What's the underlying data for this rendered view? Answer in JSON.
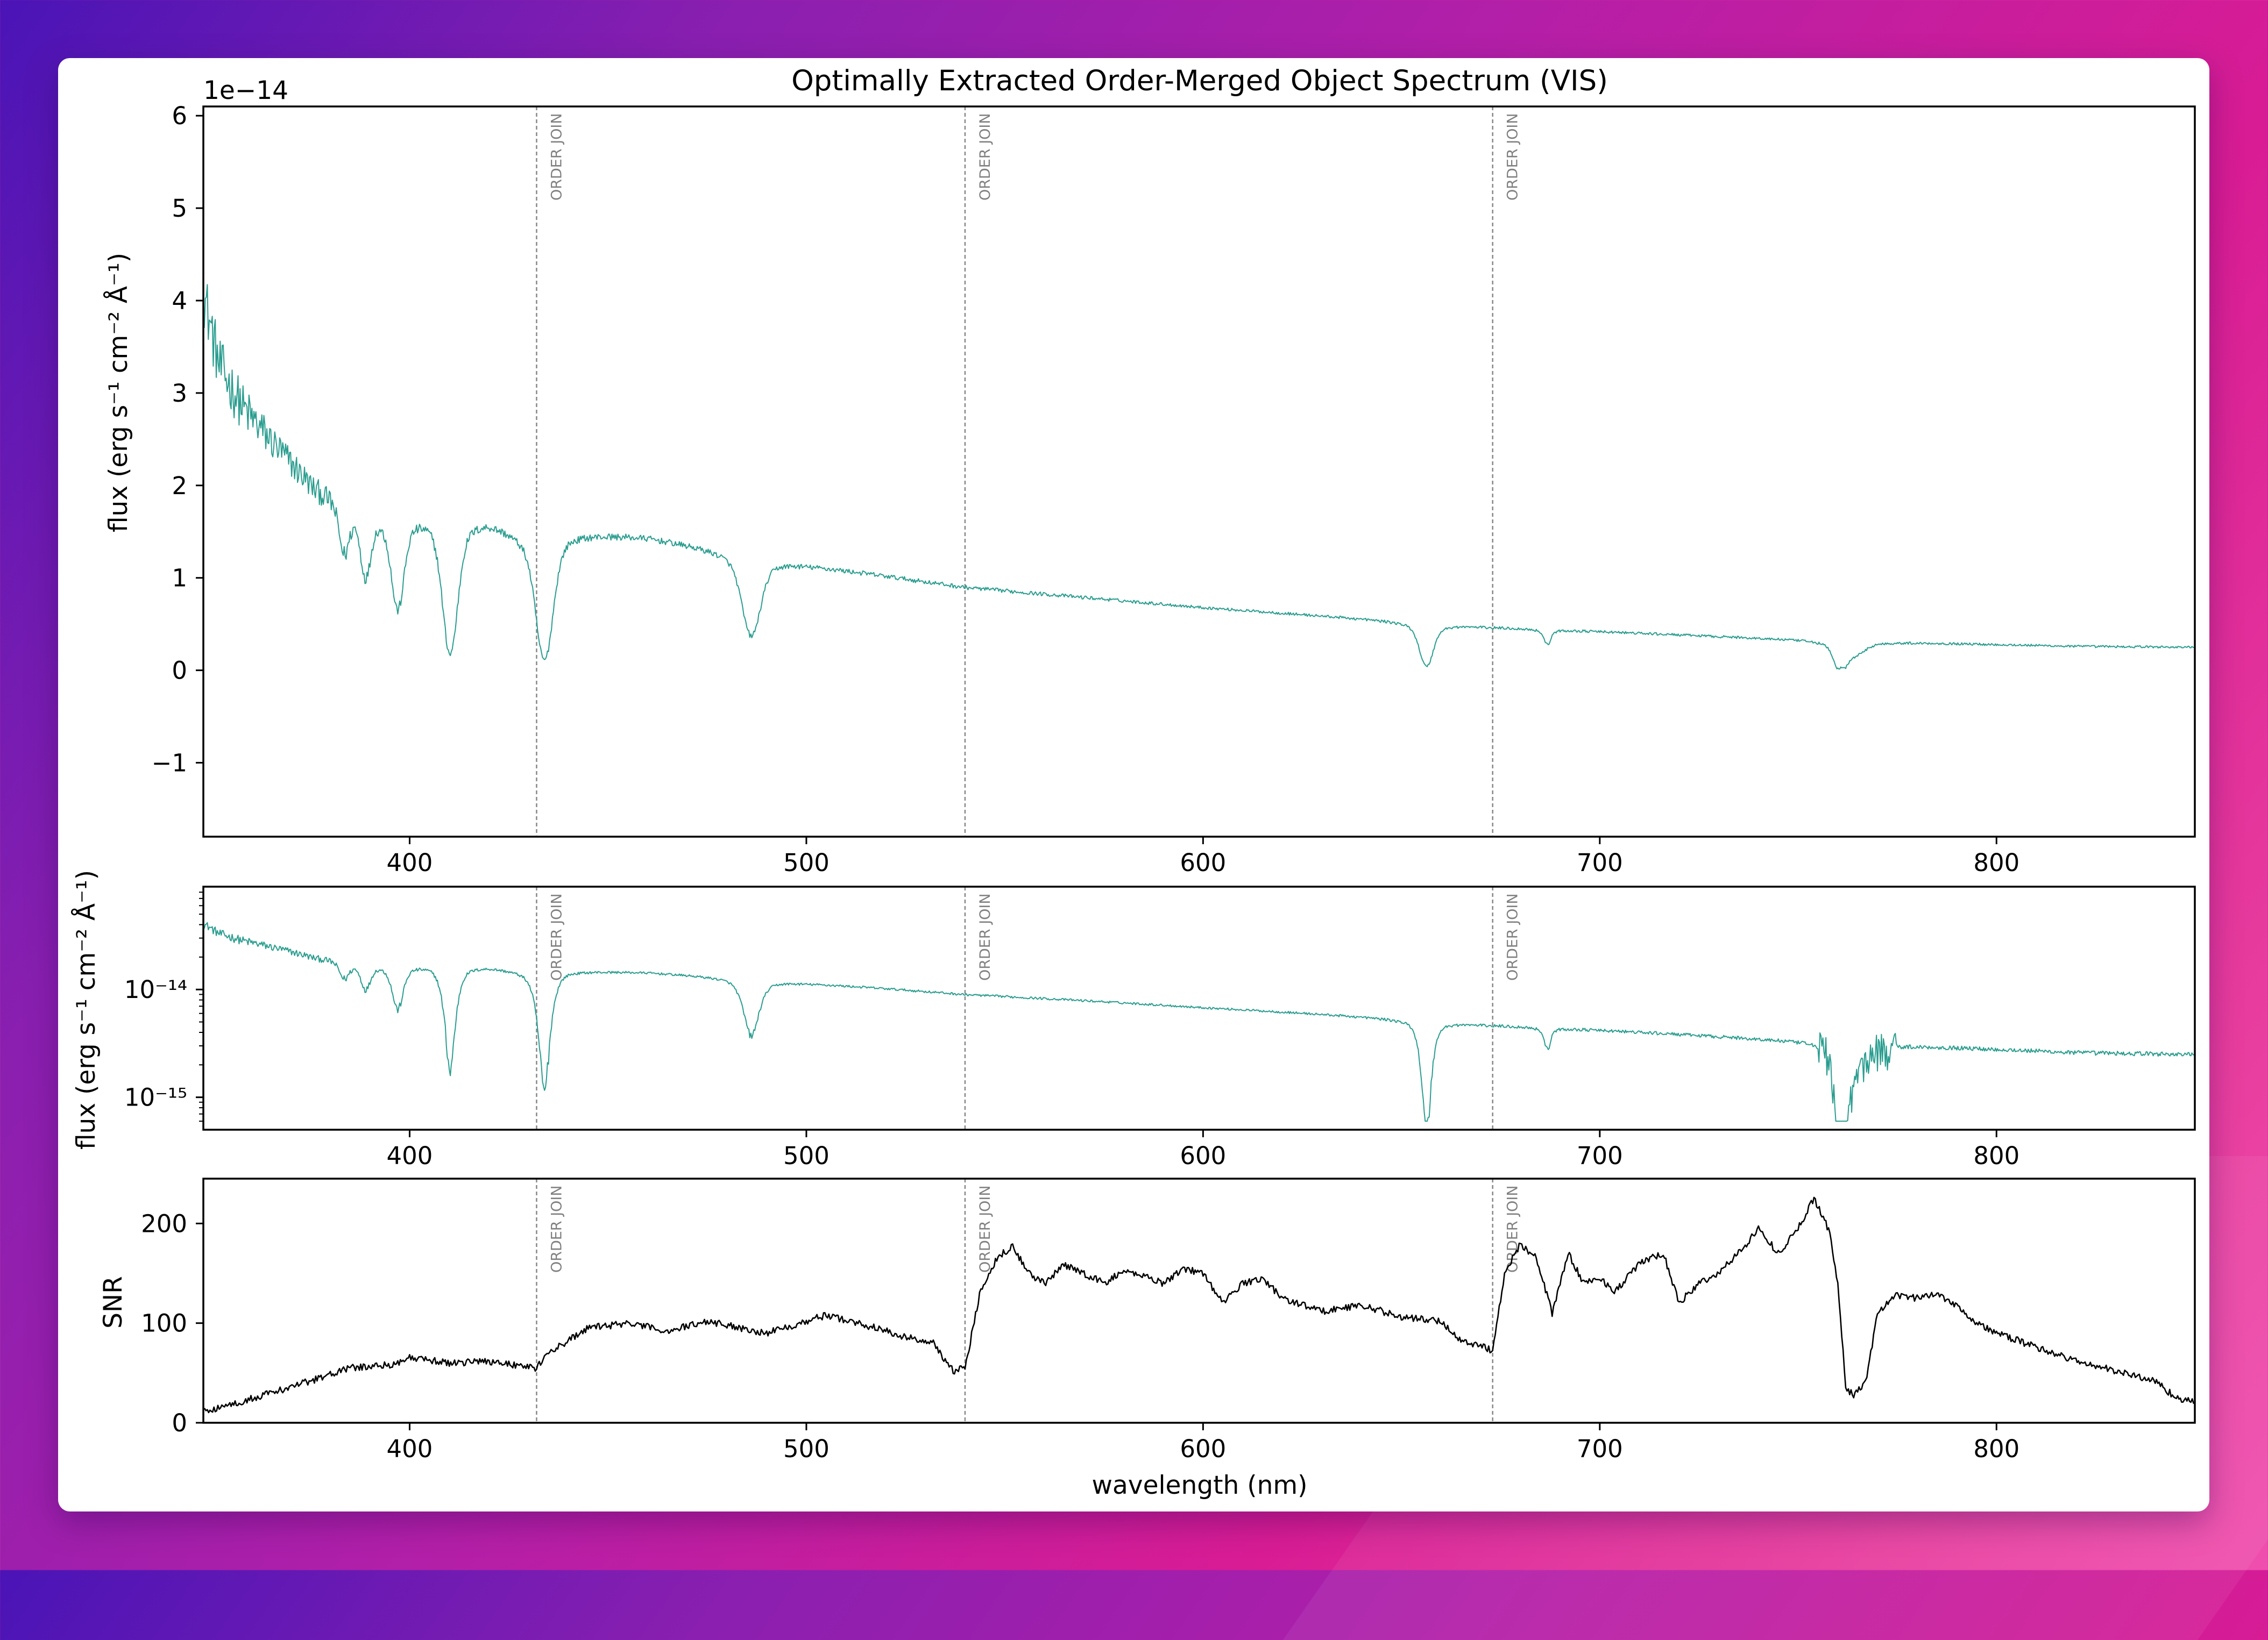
{
  "chart_data": [
    {
      "panel": "linear-flux",
      "type": "line",
      "title": "Optimally Extracted Order-Merged Object Spectrum (VIS)",
      "xlabel": "",
      "ylabel": "flux (erg s⁻¹ cm⁻² Å⁻¹)",
      "offset_label": "1e−14",
      "xlim": [
        348,
        850
      ],
      "ylim": [
        -1.8,
        6.1
      ],
      "xticks": [
        400,
        500,
        600,
        700,
        800
      ],
      "yticks": [
        -1,
        0,
        1,
        2,
        3,
        4,
        5,
        6
      ],
      "ytick_labels": [
        "−1",
        "0",
        "1",
        "2",
        "3",
        "4",
        "5",
        "6"
      ],
      "series": [
        {
          "color": "#2a9d8f",
          "continuum": [
            [
              348,
              4.1
            ],
            [
              352,
              3.3
            ],
            [
              358,
              2.85
            ],
            [
              366,
              2.45
            ],
            [
              376,
              2.0
            ],
            [
              390,
              1.75
            ],
            [
              405,
              1.72
            ],
            [
              420,
              1.66
            ],
            [
              432,
              1.45
            ],
            [
              440,
              1.52
            ],
            [
              460,
              1.45
            ],
            [
              480,
              1.3
            ],
            [
              500,
              1.15
            ],
            [
              540,
              0.9
            ],
            [
              600,
              0.68
            ],
            [
              640,
              0.56
            ],
            [
              672,
              0.47
            ],
            [
              700,
              0.42
            ],
            [
              740,
              0.35
            ],
            [
              760,
              0.32
            ],
            [
              780,
              0.3
            ],
            [
              820,
              0.26
            ],
            [
              850,
              0.25
            ]
          ],
          "absorption_lines": [
            [
              383.5,
              0.4,
              1.2
            ],
            [
              388.9,
              0.5,
              1.2
            ],
            [
              397.0,
              0.75,
              1.5
            ],
            [
              410.2,
              1.1,
              1.8
            ],
            [
              434.0,
              1.0,
              2.0
            ],
            [
              486.1,
              0.65,
              2.2
            ],
            [
              656.3,
              0.35,
              1.6
            ],
            [
              686.8,
              0.12,
              0.8
            ],
            [
              760.5,
              0.22,
              1.4
            ],
            [
              764,
              0.1,
              2.5
            ]
          ],
          "noise": [
            [
              348,
              0.35
            ],
            [
              365,
              0.2
            ],
            [
              390,
              0.06
            ],
            [
              430,
              0.04
            ],
            [
              480,
              0.03
            ],
            [
              600,
              0.015
            ],
            [
              850,
              0.012
            ]
          ]
        }
      ],
      "grid": false
    },
    {
      "panel": "log-flux",
      "type": "line",
      "xlabel": "",
      "ylabel": "flux (erg s⁻¹ cm⁻² Å⁻¹)",
      "yscale": "log",
      "xlim": [
        348,
        850
      ],
      "ylim": [
        5e-16,
        9e-14
      ],
      "xticks": [
        400,
        500,
        600,
        700,
        800
      ],
      "yticks": [
        1e-15,
        1e-14
      ],
      "ytick_labels": [
        "10⁻¹⁵",
        "10⁻¹⁴"
      ],
      "series": [
        {
          "color": "#2a9d8f",
          "same_as_panel": "linear-flux"
        }
      ],
      "grid": false
    },
    {
      "panel": "snr",
      "type": "line",
      "xlabel": "wavelength (nm)",
      "ylabel": "SNR",
      "xlim": [
        348,
        850
      ],
      "ylim": [
        0,
        245
      ],
      "xticks": [
        400,
        500,
        600,
        700,
        800
      ],
      "yticks": [
        0,
        100,
        200
      ],
      "series": [
        {
          "color": "#000000",
          "x": [
            348,
            355,
            365,
            375,
            385,
            395,
            400,
            410,
            420,
            432,
            435,
            445,
            455,
            465,
            475,
            490,
            505,
            515,
            525,
            532,
            537,
            540,
            544,
            548,
            552,
            556,
            560,
            565,
            570,
            575,
            580,
            585,
            590,
            595,
            600,
            605,
            610,
            615,
            620,
            630,
            640,
            650,
            660,
            665,
            670,
            673,
            676,
            680,
            684,
            688,
            692,
            696,
            700,
            704,
            710,
            716,
            720,
            725,
            730,
            736,
            740,
            745,
            750,
            754,
            756,
            758,
            760,
            762,
            764,
            767,
            770,
            775,
            780,
            785,
            790,
            795,
            800,
            810,
            820,
            830,
            840,
            845,
            850
          ],
          "y": [
            12,
            18,
            30,
            42,
            55,
            58,
            65,
            60,
            62,
            55,
            70,
            95,
            100,
            92,
            102,
            90,
            108,
            98,
            86,
            80,
            52,
            55,
            135,
            165,
            178,
            150,
            140,
            158,
            150,
            140,
            152,
            148,
            140,
            155,
            150,
            120,
            140,
            145,
            125,
            112,
            118,
            106,
            102,
            82,
            78,
            72,
            150,
            180,
            165,
            110,
            170,
            140,
            145,
            132,
            160,
            170,
            120,
            140,
            150,
            175,
            195,
            170,
            195,
            225,
            210,
            190,
            140,
            35,
            28,
            40,
            110,
            128,
            125,
            130,
            118,
            100,
            90,
            76,
            62,
            52,
            42,
            26,
            20
          ]
        }
      ],
      "grid": false
    }
  ],
  "order_joins": {
    "x": [
      432,
      540,
      673
    ],
    "label": "ORDER JOIN"
  }
}
